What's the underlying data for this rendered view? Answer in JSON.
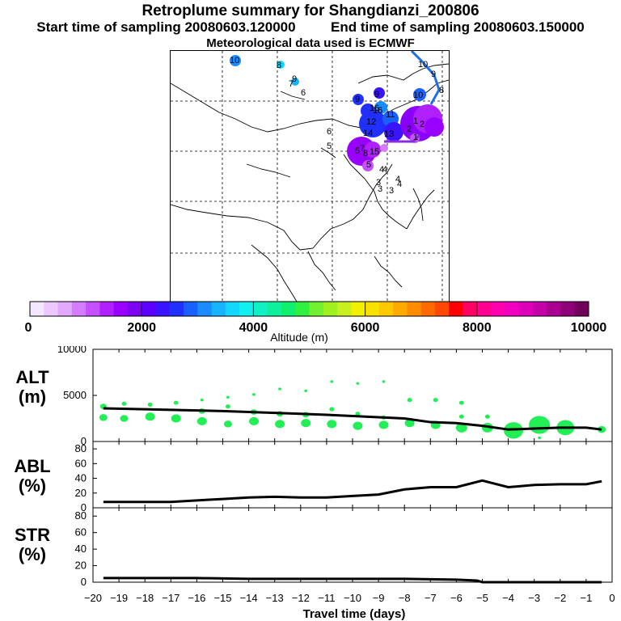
{
  "header": {
    "title": "Retroplume summary for Shangdianzi_200806",
    "start_label": "Start time of sampling 20080603.120000",
    "end_label": "End time of sampling 20080603.150000",
    "met_label": "Meteorological data used is ECMWF"
  },
  "map": {
    "plume_labels": [
      "10",
      "8",
      "9",
      "7",
      "6",
      "6",
      "5",
      "9",
      "9",
      "10",
      "16",
      "11",
      "12",
      "14",
      "13",
      "16",
      "5",
      "15",
      "8",
      "7",
      "5",
      "4",
      "4",
      "3",
      "3",
      "4",
      "4",
      "3",
      "2",
      "1",
      "2",
      "1",
      "10",
      "9",
      "8"
    ],
    "trajectory_color": "#1f6fe6",
    "trajectory_dots_color": "#8a2be2"
  },
  "colorbar": {
    "label": "Altitude (m)",
    "tick_labels": [
      "0",
      "2000",
      "4000",
      "6000",
      "8000",
      "10000"
    ],
    "range": [
      0,
      10000
    ],
    "colors": [
      "#f4e6ff",
      "#ecc8ff",
      "#e0a8ff",
      "#d37cff",
      "#c450ff",
      "#b020ff",
      "#9a00ff",
      "#7d00f0",
      "#5e00ff",
      "#3a14ff",
      "#2030ff",
      "#1a60ff",
      "#1a8cff",
      "#18b4ff",
      "#12d8ff",
      "#10f0f0",
      "#10f0c4",
      "#10f09c",
      "#10f070",
      "#30f040",
      "#70f030",
      "#a0f020",
      "#c8f020",
      "#f0f000",
      "#f8e000",
      "#ffc800",
      "#ffaa00",
      "#ff8c00",
      "#ff6a00",
      "#ff4800",
      "#ff0000",
      "#ff0064",
      "#ff0090",
      "#ff00b0",
      "#f000c0",
      "#dc00b8",
      "#c400a8",
      "#aa0090",
      "#900078",
      "#70005a"
    ]
  },
  "chart_data": [
    {
      "type": "scatter",
      "name": "ALT",
      "title": "ALT",
      "ylabel": "(m)",
      "ylim": [
        0,
        10000
      ],
      "yticks": [
        "0",
        "5000",
        "10000"
      ],
      "xlim": [
        -20,
        0
      ],
      "line": {
        "x": [
          -19.6,
          -18,
          -16.5,
          -15,
          -13,
          -11,
          -9.5,
          -8,
          -7,
          -6,
          -5,
          -4,
          -3,
          -2,
          -1,
          -0.4
        ],
        "y": [
          3600,
          3500,
          3400,
          3300,
          3100,
          2900,
          2700,
          2500,
          2100,
          2000,
          1700,
          1300,
          1400,
          1500,
          1500,
          1300
        ]
      },
      "plume_points": [
        {
          "x": -19.6,
          "y": 3800,
          "s": 4
        },
        {
          "x": -19.6,
          "y": 2600,
          "s": 5
        },
        {
          "x": -18.8,
          "y": 4100,
          "s": 3
        },
        {
          "x": -18.8,
          "y": 2500,
          "s": 5
        },
        {
          "x": -17.8,
          "y": 4000,
          "s": 3
        },
        {
          "x": -17.8,
          "y": 2700,
          "s": 6
        },
        {
          "x": -16.8,
          "y": 4200,
          "s": 3
        },
        {
          "x": -16.8,
          "y": 2500,
          "s": 6
        },
        {
          "x": -15.8,
          "y": 4500,
          "s": 2
        },
        {
          "x": -15.8,
          "y": 3300,
          "s": 4
        },
        {
          "x": -15.8,
          "y": 2200,
          "s": 6
        },
        {
          "x": -14.8,
          "y": 4800,
          "s": 2
        },
        {
          "x": -14.8,
          "y": 3800,
          "s": 3
        },
        {
          "x": -14.8,
          "y": 1900,
          "s": 5
        },
        {
          "x": -13.8,
          "y": 5100,
          "s": 2
        },
        {
          "x": -13.8,
          "y": 3200,
          "s": 4
        },
        {
          "x": -13.8,
          "y": 2200,
          "s": 6
        },
        {
          "x": -12.8,
          "y": 5700,
          "s": 2
        },
        {
          "x": -12.8,
          "y": 3000,
          "s": 4
        },
        {
          "x": -12.8,
          "y": 1900,
          "s": 6
        },
        {
          "x": -11.8,
          "y": 5500,
          "s": 2
        },
        {
          "x": -11.8,
          "y": 2900,
          "s": 4
        },
        {
          "x": -11.8,
          "y": 2000,
          "s": 6
        },
        {
          "x": -10.8,
          "y": 6500,
          "s": 2
        },
        {
          "x": -10.8,
          "y": 3500,
          "s": 3
        },
        {
          "x": -10.8,
          "y": 1900,
          "s": 6
        },
        {
          "x": -9.8,
          "y": 6300,
          "s": 2
        },
        {
          "x": -9.8,
          "y": 3000,
          "s": 3
        },
        {
          "x": -9.8,
          "y": 1700,
          "s": 6
        },
        {
          "x": -8.8,
          "y": 6500,
          "s": 2
        },
        {
          "x": -8.8,
          "y": 2600,
          "s": 3
        },
        {
          "x": -8.8,
          "y": 1800,
          "s": 6
        },
        {
          "x": -7.8,
          "y": 4500,
          "s": 3
        },
        {
          "x": -7.8,
          "y": 2000,
          "s": 6
        },
        {
          "x": -6.8,
          "y": 4500,
          "s": 3
        },
        {
          "x": -6.8,
          "y": 1800,
          "s": 6
        },
        {
          "x": -5.8,
          "y": 4200,
          "s": 3
        },
        {
          "x": -5.8,
          "y": 2700,
          "s": 3
        },
        {
          "x": -5.8,
          "y": 1500,
          "s": 7
        },
        {
          "x": -4.8,
          "y": 2700,
          "s": 3
        },
        {
          "x": -4.8,
          "y": 1500,
          "s": 7
        },
        {
          "x": -3.8,
          "y": 1200,
          "s": 12
        },
        {
          "x": -2.8,
          "y": 1800,
          "s": 13
        },
        {
          "x": -2.8,
          "y": 400,
          "s": 2
        },
        {
          "x": -1.8,
          "y": 1500,
          "s": 11
        },
        {
          "x": -0.4,
          "y": 1300,
          "s": 5
        }
      ]
    },
    {
      "type": "line",
      "name": "ABL",
      "title": "ABL",
      "ylabel": "(%)",
      "ylim": [
        0,
        90
      ],
      "yticks": [
        "0",
        "20",
        "40",
        "60",
        "80"
      ],
      "xlim": [
        -20,
        0
      ],
      "x": [
        -19.6,
        -18,
        -17,
        -16,
        -15,
        -14,
        -13,
        -12,
        -11,
        -10,
        -9,
        -8,
        -7,
        -6,
        -5,
        -4,
        -3,
        -2,
        -1,
        -0.4
      ],
      "y": [
        8,
        8,
        8,
        10,
        12,
        14,
        15,
        14,
        14,
        16,
        18,
        25,
        28,
        28,
        37,
        28,
        31,
        32,
        32,
        36
      ]
    },
    {
      "type": "line",
      "name": "STR",
      "title": "STR",
      "ylabel": "(%)",
      "ylim": [
        0,
        90
      ],
      "yticks": [
        "0",
        "20",
        "40",
        "60",
        "80"
      ],
      "xlim": [
        -20,
        0
      ],
      "x": [
        -19.6,
        -18,
        -16,
        -14,
        -12,
        -10,
        -8,
        -6,
        -5.2,
        -5,
        -4,
        -3,
        -2,
        -1,
        -0.4
      ],
      "y": [
        5,
        5,
        5,
        4,
        4,
        4,
        4,
        3,
        2,
        0,
        0,
        0,
        0,
        0,
        0
      ]
    }
  ],
  "xaxis": {
    "label": "Travel time (days)",
    "tick_labels": [
      "−20",
      "−19",
      "−18",
      "−17",
      "−16",
      "−15",
      "−14",
      "−13",
      "−12",
      "−11",
      "−10",
      "−9",
      "−8",
      "−7",
      "−6",
      "−5",
      "−4",
      "−3",
      "−2",
      "−1",
      "0"
    ]
  }
}
